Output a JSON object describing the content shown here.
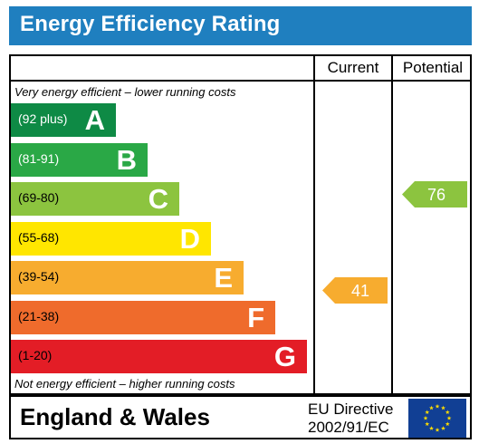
{
  "title": "Energy Efficiency Rating",
  "columns": {
    "current": "Current",
    "potential": "Potential"
  },
  "notes": {
    "top": "Very energy efficient – lower running costs",
    "bottom": "Not energy efficient – higher running costs"
  },
  "bands": [
    {
      "range": "(92 plus)",
      "letter": "A",
      "color": "#0e8a45",
      "range_color": "#ffffff"
    },
    {
      "range": "(81-91)",
      "letter": "B",
      "color": "#2aa846",
      "range_color": "#ffffff"
    },
    {
      "range": "(69-80)",
      "letter": "C",
      "color": "#8cc43f",
      "range_color": "#000000"
    },
    {
      "range": "(55-68)",
      "letter": "D",
      "color": "#ffe600",
      "range_color": "#000000"
    },
    {
      "range": "(39-54)",
      "letter": "E",
      "color": "#f7ac2f",
      "range_color": "#000000"
    },
    {
      "range": "(21-38)",
      "letter": "F",
      "color": "#ef6b2c",
      "range_color": "#000000"
    },
    {
      "range": "(1-20)",
      "letter": "G",
      "color": "#e31d26",
      "range_color": "#000000"
    }
  ],
  "current": {
    "value": "41",
    "color": "#f7ac2f"
  },
  "potential": {
    "value": "76",
    "color": "#8cc43f"
  },
  "footer": {
    "country": "England & Wales",
    "directive_line1": "EU Directive",
    "directive_line2": "2002/91/EC",
    "flag_icon": "eu-flag-icon"
  }
}
